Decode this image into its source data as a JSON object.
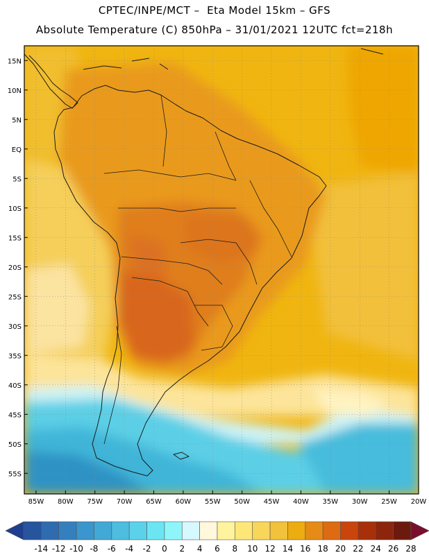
{
  "header": {
    "line1": "CPTEC/INPE/MCT –  Eta Model 15km – GFS",
    "line2": "Absolute Temperature (C) 850hPa – 31/01/2021 12UTC fct=218h"
  },
  "map": {
    "lat_labels": [
      "15N",
      "10N",
      "5N",
      "EQ",
      "5S",
      "10S",
      "15S",
      "20S",
      "25S",
      "30S",
      "35S",
      "40S",
      "45S",
      "50S",
      "55S"
    ],
    "lon_labels": [
      "85W",
      "80W",
      "75W",
      "70W",
      "65W",
      "60W",
      "55W",
      "50W",
      "45W",
      "40W",
      "35W",
      "30W",
      "25W",
      "20W"
    ],
    "colors": {
      "ocean_warm": "#EFB000",
      "ocean_mid": "#F2C94A",
      "land_hot": "#E48D1C",
      "land_hottest": "#D8661A",
      "southern_cold": "#47C6E0",
      "southern_coldest": "#2A9FC9"
    }
  },
  "colorbar": {
    "labels": [
      "-14",
      "-12",
      "-10",
      "-8",
      "-6",
      "-4",
      "-2",
      "0",
      "2",
      "4",
      "6",
      "8",
      "10",
      "12",
      "14",
      "16",
      "18",
      "20",
      "22",
      "24",
      "26",
      "28"
    ],
    "colors": [
      "#1F3E8F",
      "#27549E",
      "#2F6BAF",
      "#3480BE",
      "#3A96CC",
      "#42A9D6",
      "#4DBDE0",
      "#5BD2EA",
      "#6CE5F3",
      "#8EF6FB",
      "#D6F8FF",
      "#FFF8DC",
      "#FFF39E",
      "#FEE779",
      "#F8D65A",
      "#F1C23C",
      "#EDAC10",
      "#E68B15",
      "#DE6A12",
      "#C9450C",
      "#A7300A",
      "#8C250C",
      "#6D1A0E",
      "#7A0E2E"
    ]
  }
}
